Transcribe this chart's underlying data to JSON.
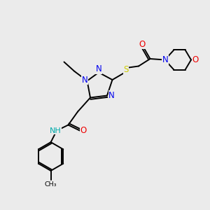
{
  "bg_color": "#ebebeb",
  "atom_colors": {
    "C": "#000000",
    "N": "#0000ee",
    "O": "#ee0000",
    "S": "#cccc00",
    "H": "#00aaaa"
  },
  "figsize": [
    3.0,
    3.0
  ],
  "dpi": 100,
  "bond_lw": 1.4,
  "font_size": 8.5
}
